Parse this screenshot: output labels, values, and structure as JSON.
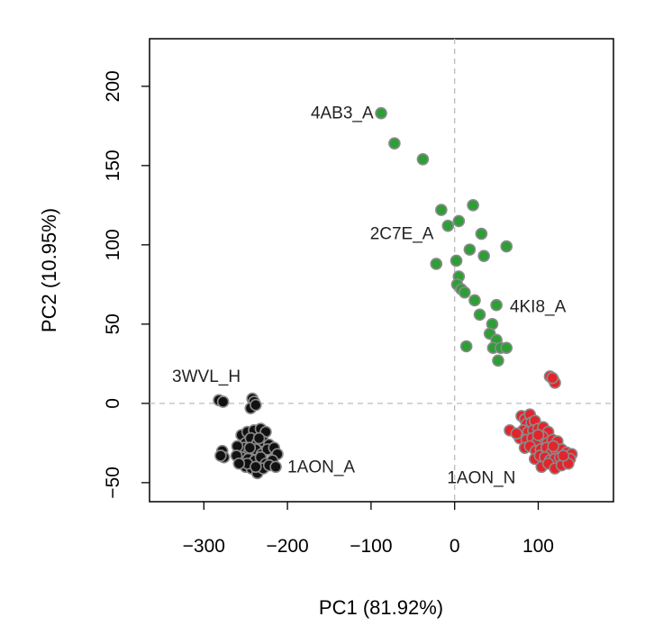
{
  "chart_data": {
    "type": "scatter",
    "title": "",
    "xlabel": "PC1 (81.92%)",
    "ylabel": "PC2 (10.95%)",
    "xlim": [
      -365,
      190
    ],
    "ylim": [
      -62,
      230
    ],
    "xticks": [
      -300,
      -200,
      -100,
      0,
      100
    ],
    "yticks": [
      -50,
      0,
      50,
      100,
      150,
      200
    ],
    "xtick_labels": [
      "−300",
      "−200",
      "−100",
      "0",
      "100"
    ],
    "ytick_labels": [
      "−50",
      "0",
      "50",
      "100",
      "150",
      "200"
    ],
    "reference_lines": {
      "x": 0,
      "y": 0,
      "style": "dashed",
      "color": "#bbbbbb"
    },
    "grid": false,
    "series": [
      {
        "color": "#2e9e37",
        "points": [
          [
            -88,
            183
          ],
          [
            -72,
            164
          ],
          [
            -38,
            154
          ],
          [
            -16,
            122
          ],
          [
            -8,
            112
          ],
          [
            5,
            115
          ],
          [
            22,
            125
          ],
          [
            32,
            107
          ],
          [
            18,
            97
          ],
          [
            35,
            93
          ],
          [
            62,
            99
          ],
          [
            -22,
            88
          ],
          [
            2,
            90
          ],
          [
            5,
            80
          ],
          [
            3,
            75
          ],
          [
            8,
            72
          ],
          [
            12,
            70
          ],
          [
            24,
            65
          ],
          [
            30,
            56
          ],
          [
            50,
            62
          ],
          [
            45,
            50
          ],
          [
            42,
            44
          ],
          [
            50,
            40
          ],
          [
            46,
            35
          ],
          [
            55,
            35
          ],
          [
            62,
            35
          ],
          [
            14,
            36
          ],
          [
            52,
            27
          ]
        ]
      },
      {
        "color": "#111111",
        "points": [
          [
            -282,
            2
          ],
          [
            -277,
            1
          ],
          [
            -242,
            3
          ],
          [
            -240,
            1
          ],
          [
            -244,
            -3
          ],
          [
            -238,
            -1
          ],
          [
            -255,
            -20
          ],
          [
            -248,
            -18
          ],
          [
            -240,
            -17
          ],
          [
            -232,
            -16
          ],
          [
            -226,
            -18
          ],
          [
            -250,
            -25
          ],
          [
            -244,
            -22
          ],
          [
            -236,
            -25
          ],
          [
            -229,
            -24
          ],
          [
            -222,
            -26
          ],
          [
            -258,
            -30
          ],
          [
            -252,
            -28
          ],
          [
            -246,
            -31
          ],
          [
            -238,
            -29
          ],
          [
            -231,
            -32
          ],
          [
            -224,
            -29
          ],
          [
            -216,
            -28
          ],
          [
            -212,
            -32
          ],
          [
            -255,
            -34
          ],
          [
            -247,
            -35
          ],
          [
            -239,
            -36
          ],
          [
            -232,
            -34
          ],
          [
            -226,
            -38
          ],
          [
            -218,
            -36
          ],
          [
            -260,
            -27
          ],
          [
            -261,
            -33
          ],
          [
            -278,
            -30
          ],
          [
            -276,
            -34
          ],
          [
            -280,
            -33
          ],
          [
            -250,
            -40
          ],
          [
            -243,
            -41
          ],
          [
            -236,
            -44
          ],
          [
            -229,
            -41
          ],
          [
            -222,
            -39
          ],
          [
            -214,
            -40
          ],
          [
            -234,
            -22
          ],
          [
            -248,
            -38
          ],
          [
            -258,
            -38
          ],
          [
            -245,
            -28
          ],
          [
            -238,
            -40
          ]
        ]
      },
      {
        "color": "#e3242b",
        "points": [
          [
            114,
            17
          ],
          [
            118,
            15
          ],
          [
            120,
            13
          ],
          [
            117,
            16
          ],
          [
            80,
            -8
          ],
          [
            84,
            -10
          ],
          [
            90,
            -7
          ],
          [
            86,
            -13
          ],
          [
            92,
            -12
          ],
          [
            96,
            -11
          ],
          [
            82,
            -17
          ],
          [
            88,
            -18
          ],
          [
            94,
            -17
          ],
          [
            100,
            -16
          ],
          [
            106,
            -15
          ],
          [
            112,
            -18
          ],
          [
            78,
            -22
          ],
          [
            86,
            -23
          ],
          [
            93,
            -22
          ],
          [
            99,
            -24
          ],
          [
            105,
            -21
          ],
          [
            111,
            -25
          ],
          [
            117,
            -23
          ],
          [
            123,
            -24
          ],
          [
            84,
            -28
          ],
          [
            90,
            -27
          ],
          [
            97,
            -30
          ],
          [
            103,
            -29
          ],
          [
            110,
            -28
          ],
          [
            116,
            -31
          ],
          [
            122,
            -30
          ],
          [
            128,
            -29
          ],
          [
            134,
            -31
          ],
          [
            140,
            -32
          ],
          [
            96,
            -35
          ],
          [
            102,
            -33
          ],
          [
            108,
            -34
          ],
          [
            114,
            -36
          ],
          [
            120,
            -35
          ],
          [
            126,
            -34
          ],
          [
            132,
            -36
          ],
          [
            138,
            -35
          ],
          [
            104,
            -40
          ],
          [
            112,
            -38
          ],
          [
            120,
            -41
          ],
          [
            128,
            -39
          ],
          [
            136,
            -38
          ],
          [
            66,
            -17
          ],
          [
            74,
            -19
          ],
          [
            118,
            -27
          ],
          [
            130,
            -33
          ],
          [
            100,
            -20
          ]
        ]
      }
    ],
    "annotations": [
      {
        "text": "4AB3_A",
        "x": -97,
        "y": 183,
        "anchor": "end"
      },
      {
        "text": "2C7E_A",
        "x": -25,
        "y": 107,
        "anchor": "end"
      },
      {
        "text": "4KI8_A",
        "x": 66,
        "y": 61,
        "anchor": "start"
      },
      {
        "text": "3WVL_H",
        "x": -338,
        "y": 17,
        "anchor": "start"
      },
      {
        "text": "1AON_A",
        "x": -200,
        "y": -40,
        "anchor": "start"
      },
      {
        "text": "1AON_N",
        "x": -9,
        "y": -47,
        "anchor": "start"
      }
    ]
  }
}
